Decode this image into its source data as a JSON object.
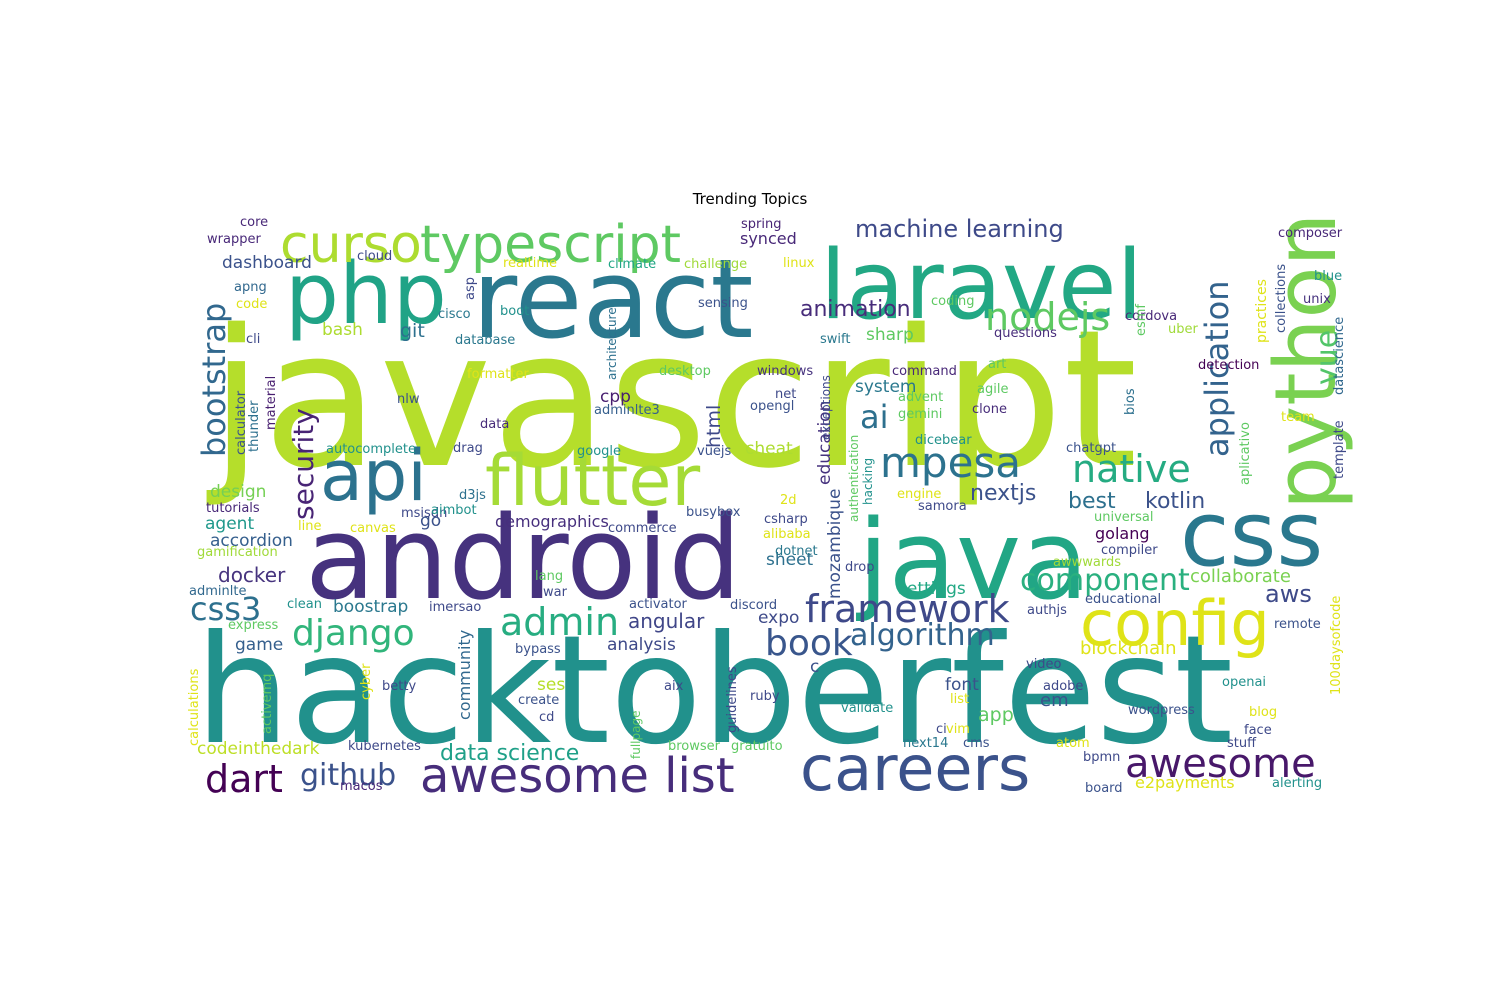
{
  "title": "Trending Topics",
  "palette": {
    "navy": "#46327e",
    "indigo": "#3f4788",
    "blue": "#365c8d",
    "steel": "#2d708e",
    "teal": "#277f8e",
    "cyan": "#1f9a8a",
    "green": "#21a685",
    "mint": "#35b779",
    "leaf": "#5ec962",
    "lime": "#a5db36",
    "chartreuse": "#b5de2b",
    "yellow": "#dfe318",
    "purple": "#482878"
  },
  "words": [
    {
      "text": "javascript",
      "color": "#b5de2b"
    },
    {
      "text": "hacktoberfest",
      "color": "#21918c"
    },
    {
      "text": "android",
      "color": "#46327e"
    },
    {
      "text": "react",
      "color": "#2a788e"
    },
    {
      "text": "java",
      "color": "#21a685"
    },
    {
      "text": "laravel",
      "color": "#22a884"
    },
    {
      "text": "css",
      "color": "#2a788e"
    },
    {
      "text": "php",
      "color": "#20a386"
    },
    {
      "text": "python",
      "color": "#7ad151"
    },
    {
      "text": "api",
      "color": "#2c728e"
    },
    {
      "text": "flutter",
      "color": "#a5db36"
    },
    {
      "text": "careers",
      "color": "#3b528b"
    },
    {
      "text": "config",
      "color": "#dfe318"
    },
    {
      "text": "awesome list",
      "color": "#472d7b"
    },
    {
      "text": "typescript",
      "color": "#5ec962"
    },
    {
      "text": "curso",
      "color": "#addc30"
    },
    {
      "text": "framework",
      "color": "#3e4989"
    },
    {
      "text": "mpesa",
      "color": "#2c728e"
    },
    {
      "text": "native",
      "color": "#25ab82"
    },
    {
      "text": "nodejs",
      "color": "#5ec962"
    },
    {
      "text": "awesome",
      "color": "#48186a"
    },
    {
      "text": "django",
      "color": "#31b57b"
    },
    {
      "text": "admin",
      "color": "#27ad81"
    },
    {
      "text": "book",
      "color": "#39568c"
    },
    {
      "text": "algorithm",
      "color": "#33638d"
    },
    {
      "text": "component",
      "color": "#2ab07f"
    },
    {
      "text": "dart",
      "color": "#440154"
    },
    {
      "text": "github",
      "color": "#3b528b"
    },
    {
      "text": "css3",
      "color": "#2d708e"
    },
    {
      "text": "bootstrap",
      "color": "#31688e"
    },
    {
      "text": "security",
      "color": "#482475"
    },
    {
      "text": "application",
      "color": "#33638d"
    },
    {
      "text": "vue",
      "color": "#52c569"
    },
    {
      "text": "ai",
      "color": "#2d708e"
    },
    {
      "text": "machine learning",
      "color": "#3e4a89"
    },
    {
      "text": "kotlin",
      "color": "#3b528b"
    },
    {
      "text": "best",
      "color": "#2d708e"
    },
    {
      "text": "nextjs",
      "color": "#3b528b"
    },
    {
      "text": "docker",
      "color": "#46337e"
    },
    {
      "text": "data science",
      "color": "#1fa088"
    },
    {
      "text": "animation",
      "color": "#472c7a"
    },
    {
      "text": "angular",
      "color": "#404688"
    },
    {
      "text": "aws",
      "color": "#3e4a89"
    },
    {
      "text": "blockchain",
      "color": "#dfe318"
    },
    {
      "text": "collaborate",
      "color": "#7ad151"
    },
    {
      "text": "demographics",
      "color": "#472f7d"
    },
    {
      "text": "dashboard",
      "color": "#3b528b"
    },
    {
      "text": "synced",
      "color": "#482878"
    },
    {
      "text": "git",
      "color": "#2d708e"
    },
    {
      "text": "bash",
      "color": "#addc30"
    },
    {
      "text": "design",
      "color": "#75d054"
    },
    {
      "text": "accordion",
      "color": "#355f8d"
    },
    {
      "text": "agent",
      "color": "#1f988b"
    },
    {
      "text": "go",
      "color": "#3b528b"
    },
    {
      "text": "cpp",
      "color": "#481f70"
    },
    {
      "text": "html",
      "color": "#3e4989"
    },
    {
      "text": "sharp",
      "color": "#5ec962"
    },
    {
      "text": "system",
      "color": "#2a788e"
    },
    {
      "text": "education",
      "color": "#46327e"
    },
    {
      "text": "mozambique",
      "color": "#3b528b"
    },
    {
      "text": "cheat",
      "color": "#addc30"
    },
    {
      "text": "sheet",
      "color": "#2d708e"
    },
    {
      "text": "expo",
      "color": "#3e4a89"
    },
    {
      "text": "golang",
      "color": "#440154"
    },
    {
      "text": "settings",
      "color": "#22a884"
    },
    {
      "text": "boostrap",
      "color": "#2a788e"
    },
    {
      "text": "game",
      "color": "#355f8d"
    },
    {
      "text": "analysis",
      "color": "#3e4989"
    },
    {
      "text": "community",
      "color": "#31688e"
    },
    {
      "text": "ses",
      "color": "#b5de2b"
    },
    {
      "text": "codeinthedark",
      "color": "#bddf26"
    },
    {
      "text": "app",
      "color": "#5ec962"
    },
    {
      "text": "font",
      "color": "#3b528b"
    },
    {
      "text": "em",
      "color": "#3b528b"
    },
    {
      "text": "c",
      "color": "#3b528b"
    },
    {
      "text": "e2payments",
      "color": "#dfe318"
    },
    {
      "text": "core",
      "color": "#482878"
    },
    {
      "text": "wrapper",
      "color": "#482878"
    },
    {
      "text": "cloud",
      "color": "#3e4989"
    },
    {
      "text": "apng",
      "color": "#31688e"
    },
    {
      "text": "code",
      "color": "#dfe318"
    },
    {
      "text": "cli",
      "color": "#3e4989"
    },
    {
      "text": "calculator",
      "color": "#3b528b"
    },
    {
      "text": "thunder",
      "color": "#2d708e"
    },
    {
      "text": "material",
      "color": "#481f70"
    },
    {
      "text": "asp",
      "color": "#3e4989"
    },
    {
      "text": "cisco",
      "color": "#2a788e"
    },
    {
      "text": "boot",
      "color": "#21918c"
    },
    {
      "text": "database",
      "color": "#2a788e"
    },
    {
      "text": "realtime",
      "color": "#dfe318"
    },
    {
      "text": "spring",
      "color": "#482475"
    },
    {
      "text": "climate",
      "color": "#21a685"
    },
    {
      "text": "challenge",
      "color": "#a0da39"
    },
    {
      "text": "linux",
      "color": "#dfe318"
    },
    {
      "text": "architecture",
      "color": "#2d708e"
    },
    {
      "text": "sensing",
      "color": "#3b528b"
    },
    {
      "text": "coding",
      "color": "#5ec962"
    },
    {
      "text": "cordova",
      "color": "#482878"
    },
    {
      "text": "composer",
      "color": "#482878"
    },
    {
      "text": "practices",
      "color": "#dfe318"
    },
    {
      "text": "collections",
      "color": "#3b528b"
    },
    {
      "text": "blue",
      "color": "#21918c"
    },
    {
      "text": "unix",
      "color": "#46327e"
    },
    {
      "text": "datascience",
      "color": "#31688e"
    },
    {
      "text": "questions",
      "color": "#472c7a"
    },
    {
      "text": "uber",
      "color": "#a0da39"
    },
    {
      "text": "esmf",
      "color": "#5ec962"
    },
    {
      "text": "swift",
      "color": "#2a788e"
    },
    {
      "text": "art",
      "color": "#5ec962"
    },
    {
      "text": "agile",
      "color": "#5ec962"
    },
    {
      "text": "detection",
      "color": "#440154"
    },
    {
      "text": "bios",
      "color": "#2d708e"
    },
    {
      "text": "clone",
      "color": "#472c7a"
    },
    {
      "text": "team",
      "color": "#dfe318"
    },
    {
      "text": "template",
      "color": "#3e4989"
    },
    {
      "text": "aplicativo",
      "color": "#5ec962"
    },
    {
      "text": "command",
      "color": "#482878"
    },
    {
      "text": "windows",
      "color": "#46327e"
    },
    {
      "text": "net",
      "color": "#3e4989"
    },
    {
      "text": "opengl",
      "color": "#3b528b"
    },
    {
      "text": "exceptions",
      "color": "#3e4989"
    },
    {
      "text": "advent",
      "color": "#5ec962"
    },
    {
      "text": "gemini",
      "color": "#5ec962"
    },
    {
      "text": "formatter",
      "color": "#dfe318"
    },
    {
      "text": "desktop",
      "color": "#5ec962"
    },
    {
      "text": "adminlte3",
      "color": "#355f8d"
    },
    {
      "text": "nlw",
      "color": "#3b528b"
    },
    {
      "text": "data",
      "color": "#472c7a"
    },
    {
      "text": "autocomplete",
      "color": "#21918c"
    },
    {
      "text": "drag",
      "color": "#3e4989"
    },
    {
      "text": "google",
      "color": "#21918c"
    },
    {
      "text": "vuejs",
      "color": "#3b528b"
    },
    {
      "text": "d3js",
      "color": "#2d708e"
    },
    {
      "text": "msisdn",
      "color": "#3e4989"
    },
    {
      "text": "aimbot",
      "color": "#21918c"
    },
    {
      "text": "tutorials",
      "color": "#482878"
    },
    {
      "text": "line",
      "color": "#dfe318"
    },
    {
      "text": "canvas",
      "color": "#dfe318"
    },
    {
      "text": "gamification",
      "color": "#a0da39"
    },
    {
      "text": "busybox",
      "color": "#3b528b"
    },
    {
      "text": "csharp",
      "color": "#3e4989"
    },
    {
      "text": "commerce",
      "color": "#3e4989"
    },
    {
      "text": "alibaba",
      "color": "#dfe318"
    },
    {
      "text": "dotnet",
      "color": "#2a788e"
    },
    {
      "text": "drop",
      "color": "#3e4989"
    },
    {
      "text": "2d",
      "color": "#dfe318"
    },
    {
      "text": "authentication",
      "color": "#5ec962"
    },
    {
      "text": "hacking",
      "color": "#21918c"
    },
    {
      "text": "dicebear",
      "color": "#21918c"
    },
    {
      "text": "engine",
      "color": "#dfe318"
    },
    {
      "text": "samora",
      "color": "#3e4989"
    },
    {
      "text": "chatgpt",
      "color": "#3b528b"
    },
    {
      "text": "universal",
      "color": "#5ec962"
    },
    {
      "text": "compiler",
      "color": "#3e4989"
    },
    {
      "text": "awwwards",
      "color": "#a0da39"
    },
    {
      "text": "adminlte",
      "color": "#31688e"
    },
    {
      "text": "clean",
      "color": "#21918c"
    },
    {
      "text": "imersao",
      "color": "#3e4989"
    },
    {
      "text": "lang",
      "color": "#5ec962"
    },
    {
      "text": "activator",
      "color": "#3b528b"
    },
    {
      "text": "discord",
      "color": "#3b528b"
    },
    {
      "text": "authjs",
      "color": "#3e4989"
    },
    {
      "text": "educational",
      "color": "#3b528b"
    },
    {
      "text": "express",
      "color": "#5ec962"
    },
    {
      "text": "remote",
      "color": "#3b528b"
    },
    {
      "text": "100daysofcode",
      "color": "#dfe318"
    },
    {
      "text": "calculations",
      "color": "#dfe318"
    },
    {
      "text": "activemq",
      "color": "#5ec962"
    },
    {
      "text": "cyber",
      "color": "#dfe318"
    },
    {
      "text": "betty",
      "color": "#3e4989"
    },
    {
      "text": "bypass",
      "color": "#3b528b"
    },
    {
      "text": "war",
      "color": "#3e4989"
    },
    {
      "text": "create",
      "color": "#3b528b"
    },
    {
      "text": "cd",
      "color": "#3e4989"
    },
    {
      "text": "aix",
      "color": "#3e4989"
    },
    {
      "text": "fullpage",
      "color": "#5ec962"
    },
    {
      "text": "guidelines",
      "color": "#3e4989"
    },
    {
      "text": "ruby",
      "color": "#3e4989"
    },
    {
      "text": "browser",
      "color": "#5ec962"
    },
    {
      "text": "gratuito",
      "color": "#5ec962"
    },
    {
      "text": "validate",
      "color": "#21918c"
    },
    {
      "text": "list",
      "color": "#dfe318"
    },
    {
      "text": "vim",
      "color": "#dfe318"
    },
    {
      "text": "ci",
      "color": "#3e4989"
    },
    {
      "text": "next14",
      "color": "#2a788e"
    },
    {
      "text": "cms",
      "color": "#3b528b"
    },
    {
      "text": "kubernetes",
      "color": "#3e4989"
    },
    {
      "text": "macos",
      "color": "#482878"
    },
    {
      "text": "atom",
      "color": "#dfe318"
    },
    {
      "text": "bpmn",
      "color": "#3e4989"
    },
    {
      "text": "board",
      "color": "#3b528b"
    },
    {
      "text": "adobe",
      "color": "#3e4989"
    },
    {
      "text": "video",
      "color": "#3e4989"
    },
    {
      "text": "openai",
      "color": "#21918c"
    },
    {
      "text": "wordpress",
      "color": "#3b528b"
    },
    {
      "text": "blog",
      "color": "#dfe318"
    },
    {
      "text": "face",
      "color": "#3e4989"
    },
    {
      "text": "stuff",
      "color": "#3e4989"
    },
    {
      "text": "alerting",
      "color": "#21918c"
    }
  ]
}
